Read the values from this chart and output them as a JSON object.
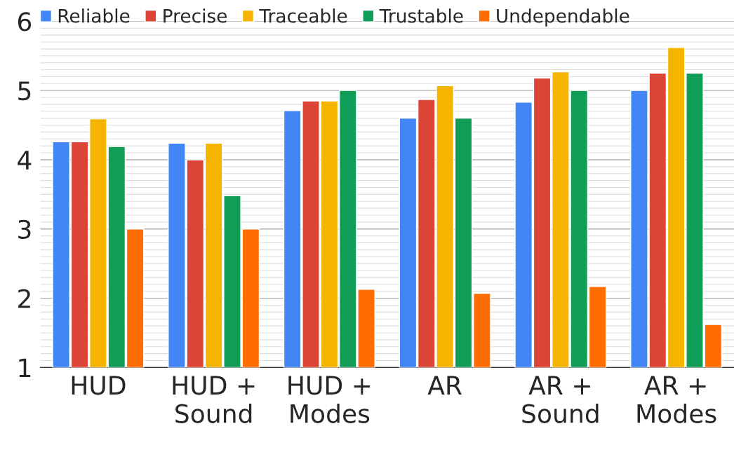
{
  "chart_data": {
    "type": "bar",
    "categories": [
      "HUD",
      "HUD +\nSound",
      "HUD +\nModes",
      "AR",
      "AR +\nSound",
      "AR +\nModes"
    ],
    "series": [
      {
        "name": "Reliable",
        "color": "#4285f4",
        "values": [
          4.26,
          4.24,
          4.71,
          4.6,
          4.83,
          5.0
        ]
      },
      {
        "name": "Precise",
        "color": "#db4437",
        "values": [
          4.26,
          4.0,
          4.85,
          4.87,
          5.18,
          5.25
        ]
      },
      {
        "name": "Traceable",
        "color": "#f4b400",
        "values": [
          4.59,
          4.24,
          4.85,
          5.07,
          5.27,
          5.62
        ]
      },
      {
        "name": "Trustable",
        "color": "#0f9d58",
        "values": [
          4.19,
          3.48,
          5.0,
          4.6,
          5.0,
          5.25
        ]
      },
      {
        "name": "Undependable",
        "color": "#ff6d00",
        "values": [
          3.0,
          3.0,
          2.13,
          2.07,
          2.17,
          1.62
        ]
      }
    ],
    "ylim": [
      1,
      6
    ],
    "yticks": [
      1,
      2,
      3,
      4,
      5,
      6
    ],
    "grid": "y",
    "legend": "top"
  }
}
